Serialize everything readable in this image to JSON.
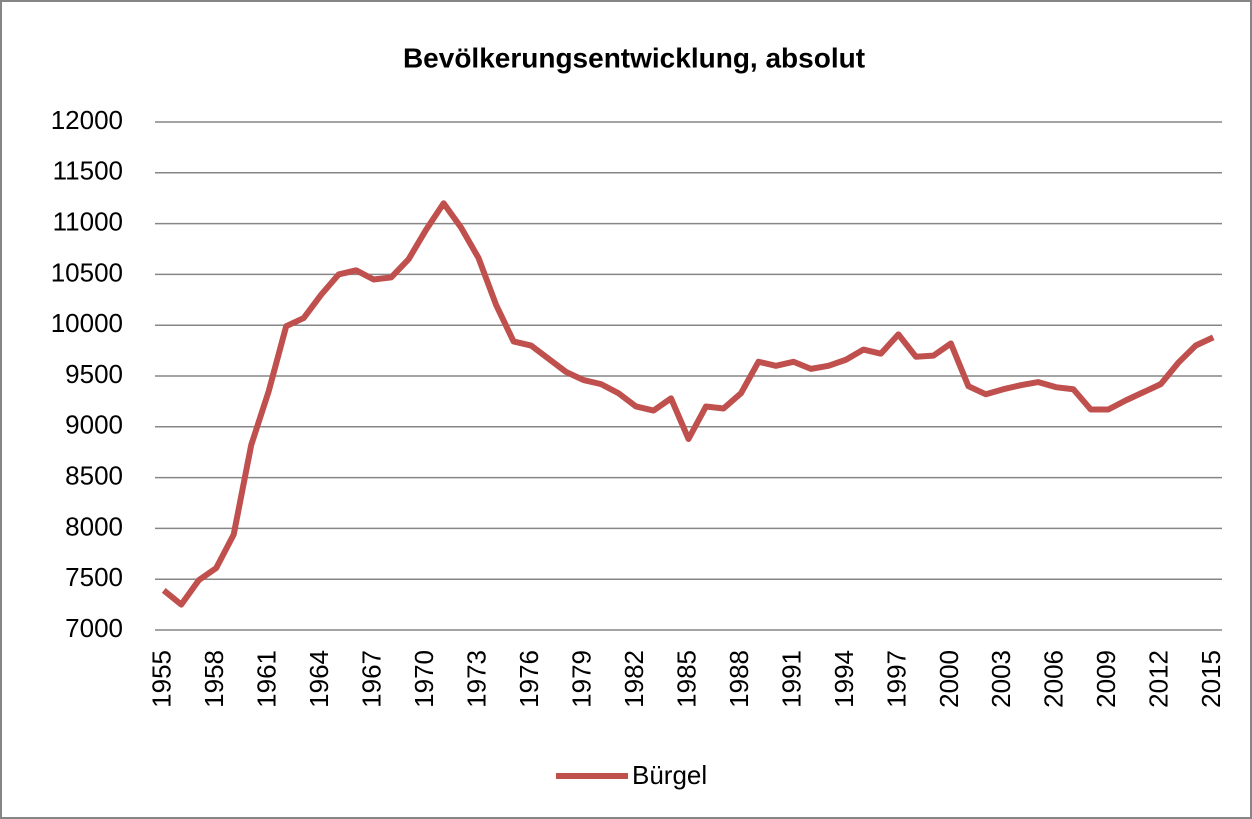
{
  "chart_data": {
    "type": "line",
    "title": "Bevölkerungsentwicklung, absolut",
    "x": [
      1955,
      1956,
      1957,
      1958,
      1959,
      1960,
      1961,
      1962,
      1963,
      1964,
      1965,
      1966,
      1967,
      1968,
      1969,
      1970,
      1971,
      1972,
      1973,
      1974,
      1975,
      1976,
      1977,
      1978,
      1979,
      1980,
      1981,
      1982,
      1983,
      1984,
      1985,
      1986,
      1987,
      1988,
      1989,
      1990,
      1991,
      1992,
      1993,
      1994,
      1995,
      1996,
      1997,
      1998,
      1999,
      2000,
      2001,
      2002,
      2003,
      2004,
      2005,
      2006,
      2007,
      2008,
      2009,
      2010,
      2011,
      2012,
      2013,
      2014,
      2015
    ],
    "series": [
      {
        "name": "Bürgel",
        "color": "#c0504d",
        "values": [
          7390,
          7250,
          7490,
          7610,
          7940,
          8820,
          9350,
          9990,
          10070,
          10300,
          10500,
          10540,
          10450,
          10470,
          10650,
          10940,
          11200,
          10960,
          10660,
          10200,
          9840,
          9800,
          9670,
          9540,
          9460,
          9420,
          9330,
          9200,
          9160,
          9280,
          8880,
          9200,
          9180,
          9330,
          9640,
          9600,
          9640,
          9570,
          9600,
          9660,
          9760,
          9720,
          9910,
          9690,
          9700,
          9820,
          9400,
          9320,
          9370,
          9410,
          9440,
          9390,
          9370,
          9170,
          9170,
          9260,
          9340,
          9420,
          9630,
          9800,
          9880
        ]
      }
    ],
    "xlim": [
      1954.5,
      2015.5
    ],
    "xticks": [
      1955,
      1958,
      1961,
      1964,
      1967,
      1970,
      1973,
      1976,
      1979,
      1982,
      1985,
      1988,
      1991,
      1994,
      1997,
      2000,
      2003,
      2006,
      2009,
      2012,
      2015
    ],
    "ylim": [
      7000,
      12000
    ],
    "yticks": [
      7000,
      7500,
      8000,
      8500,
      9000,
      9500,
      10000,
      10500,
      11000,
      11500,
      12000
    ],
    "grid": true,
    "legend": "bottom"
  }
}
